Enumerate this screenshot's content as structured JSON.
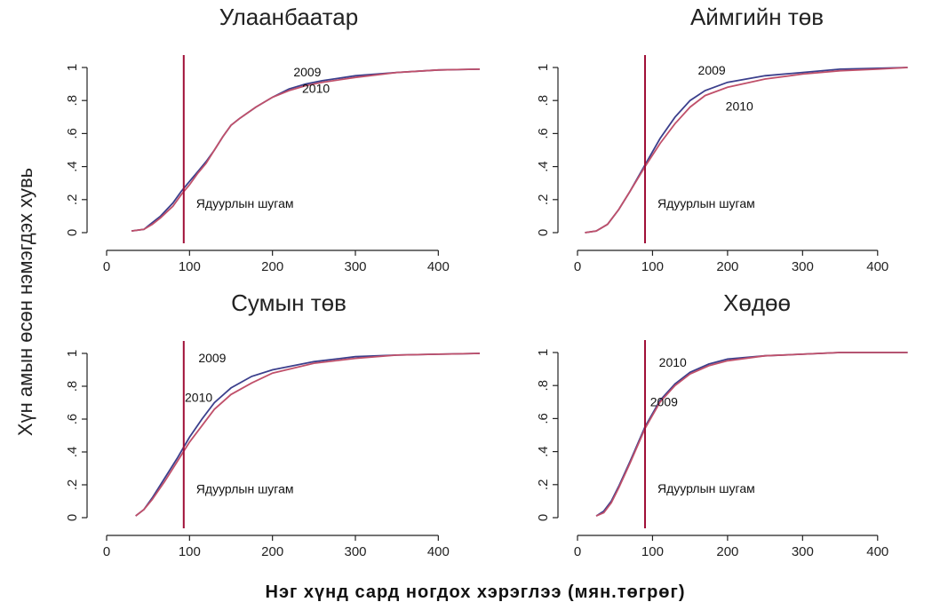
{
  "chart_data": {
    "type": "line",
    "ylabel": "Хүн амын өсөн нэмэгдэх хувь",
    "xlabel": "Нэг хүнд сард ногдох хэрэглээ  (мян.төгрөг)",
    "colors": {
      "series_a": "#3b3f8c",
      "series_b": "#c0506a",
      "poverty_line": "#a01038"
    },
    "panels": [
      {
        "title": "Улаанбаатар",
        "xlim": [
          0,
          450
        ],
        "ylim": [
          0,
          1
        ],
        "x_ticks": [
          "0",
          "100",
          "200",
          "300",
          "400"
        ],
        "y_ticks": [
          "0",
          ".2",
          ".4",
          ".6",
          ".8",
          "1"
        ],
        "poverty_line": {
          "x": 93,
          "label": "Ядуурлын шугам"
        },
        "series": [
          {
            "name": "2009",
            "label_text": "2009",
            "color": "#3b3f8c",
            "x": [
              30,
              45,
              55,
              65,
              80,
              90,
              100,
              110,
              120,
              130,
              140,
              150,
              160,
              180,
              200,
              220,
              240,
              260,
              300,
              350,
              400,
              450
            ],
            "y": [
              0.01,
              0.02,
              0.06,
              0.1,
              0.18,
              0.25,
              0.31,
              0.37,
              0.43,
              0.5,
              0.58,
              0.65,
              0.69,
              0.76,
              0.82,
              0.87,
              0.9,
              0.92,
              0.95,
              0.97,
              0.985,
              0.99
            ]
          },
          {
            "name": "2010",
            "label_text": "2010",
            "color": "#c0506a",
            "x": [
              30,
              45,
              55,
              65,
              80,
              90,
              100,
              110,
              120,
              130,
              140,
              150,
              160,
              180,
              200,
              220,
              240,
              260,
              300,
              350,
              400,
              450
            ],
            "y": [
              0.01,
              0.02,
              0.05,
              0.09,
              0.16,
              0.23,
              0.29,
              0.36,
              0.42,
              0.5,
              0.58,
              0.65,
              0.69,
              0.76,
              0.82,
              0.86,
              0.89,
              0.91,
              0.94,
              0.97,
              0.985,
              0.99
            ]
          }
        ]
      },
      {
        "title": "Аймгийн төв",
        "xlim": [
          0,
          450
        ],
        "ylim": [
          0,
          1
        ],
        "x_ticks": [
          "0",
          "100",
          "200",
          "300",
          "400"
        ],
        "y_ticks": [
          "0",
          ".2",
          ".4",
          ".6",
          ".8",
          "1"
        ],
        "poverty_line": {
          "x": 90,
          "label": "Ядуурлын шугам"
        },
        "series": [
          {
            "name": "2009",
            "label_text": "2009",
            "color": "#3b3f8c",
            "x": [
              10,
              25,
              40,
              55,
              70,
              90,
              110,
              130,
              150,
              170,
              200,
              250,
              300,
              350,
              400,
              440
            ],
            "y": [
              0.0,
              0.01,
              0.05,
              0.14,
              0.25,
              0.41,
              0.57,
              0.7,
              0.8,
              0.86,
              0.91,
              0.95,
              0.97,
              0.99,
              0.995,
              1.0
            ]
          },
          {
            "name": "2010",
            "label_text": "2010",
            "color": "#c0506a",
            "x": [
              10,
              25,
              40,
              55,
              70,
              90,
              110,
              130,
              150,
              170,
              200,
              250,
              300,
              350,
              400,
              440
            ],
            "y": [
              0.0,
              0.01,
              0.05,
              0.14,
              0.25,
              0.4,
              0.54,
              0.66,
              0.76,
              0.83,
              0.88,
              0.93,
              0.96,
              0.98,
              0.99,
              1.0
            ]
          }
        ]
      },
      {
        "title": "Сумын төв",
        "xlim": [
          0,
          450
        ],
        "ylim": [
          0,
          1
        ],
        "x_ticks": [
          "0",
          "100",
          "200",
          "300",
          "400"
        ],
        "y_ticks": [
          "0",
          ".2",
          ".4",
          ".6",
          ".8",
          "1"
        ],
        "poverty_line": {
          "x": 93,
          "label": "Ядуурлын шугам"
        },
        "series": [
          {
            "name": "2009",
            "label_text": "2009",
            "color": "#3b3f8c",
            "x": [
              35,
              45,
              55,
              70,
              85,
              100,
              115,
              130,
              150,
              175,
              200,
              250,
              300,
              350,
              400,
              450
            ],
            "y": [
              0.01,
              0.05,
              0.12,
              0.24,
              0.36,
              0.49,
              0.6,
              0.7,
              0.79,
              0.86,
              0.9,
              0.95,
              0.98,
              0.99,
              0.995,
              1.0
            ]
          },
          {
            "name": "2010",
            "label_text": "2010",
            "color": "#c0506a",
            "x": [
              35,
              45,
              55,
              70,
              85,
              100,
              115,
              130,
              150,
              175,
              200,
              250,
              300,
              350,
              400,
              450
            ],
            "y": [
              0.01,
              0.05,
              0.11,
              0.22,
              0.34,
              0.46,
              0.56,
              0.66,
              0.75,
              0.82,
              0.88,
              0.94,
              0.97,
              0.99,
              0.995,
              1.0
            ]
          }
        ]
      },
      {
        "title": "Хөдөө",
        "xlim": [
          0,
          450
        ],
        "ylim": [
          0,
          1
        ],
        "x_ticks": [
          "0",
          "100",
          "200",
          "300",
          "400"
        ],
        "y_ticks": [
          "0",
          ".2",
          ".4",
          ".6",
          ".8",
          "1"
        ],
        "poverty_line": {
          "x": 90,
          "label": "Ядуурлын шугам"
        },
        "series": [
          {
            "name": "2010",
            "label_text": "2010",
            "color": "#3b3f8c",
            "x": [
              25,
              35,
              45,
              55,
              70,
              90,
              110,
              130,
              150,
              175,
              200,
              250,
              300,
              350,
              400,
              440
            ],
            "y": [
              0.01,
              0.04,
              0.1,
              0.19,
              0.34,
              0.55,
              0.71,
              0.81,
              0.88,
              0.93,
              0.96,
              0.98,
              0.99,
              1.0,
              1.0,
              1.0
            ]
          },
          {
            "name": "2009",
            "label_text": "2009",
            "color": "#c0506a",
            "x": [
              25,
              35,
              45,
              55,
              70,
              90,
              110,
              130,
              150,
              175,
              200,
              250,
              300,
              350,
              400,
              440
            ],
            "y": [
              0.01,
              0.03,
              0.09,
              0.18,
              0.33,
              0.54,
              0.7,
              0.8,
              0.87,
              0.92,
              0.95,
              0.98,
              0.99,
              1.0,
              1.0,
              1.0
            ]
          }
        ]
      }
    ]
  }
}
